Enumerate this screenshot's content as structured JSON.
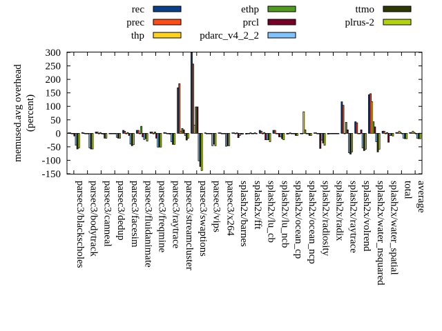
{
  "chart_data": {
    "type": "bar",
    "title": "",
    "xlabel": "",
    "ylabel": "memused.avg overhead",
    "ylabel2": "(percent)",
    "ylim": [
      -150,
      300
    ],
    "yticks": [
      -150,
      -100,
      -50,
      0,
      50,
      100,
      150,
      200,
      250,
      300
    ],
    "grid": false,
    "legend_placement": "top",
    "categories": [
      "parsec3/blackscholes",
      "parsec3/bodytrack",
      "parsec3/canneal",
      "parsec3/dedup",
      "parsec3/facesim",
      "parsec3/fluidanimate",
      "parsec3/freqmine",
      "parsec3/raytrace",
      "parsec3/streamcluster",
      "parsec3/swaptions",
      "parsec3/vips",
      "parsec3/x264",
      "splash2x/barnes",
      "splash2x/fft",
      "splash2x/lu_cb",
      "splash2x/lu_ncb",
      "splash2x/ocean_cp",
      "splash2x/ocean_ncp",
      "splash2x/radiosity",
      "splash2x/radix",
      "splash2x/raytrace",
      "splash2x/volrend",
      "splash2x/water_nsquared",
      "splash2x/water_spatial",
      "total",
      "average"
    ],
    "series": [
      {
        "name": "rec",
        "color": "#08418a",
        "values": [
          2,
          3,
          5,
          0,
          11,
          11,
          5,
          3,
          169,
          300,
          2,
          2,
          2,
          -3,
          11,
          11,
          -3,
          0,
          2,
          -3,
          117,
          43,
          143,
          8,
          3,
          3
        ]
      },
      {
        "name": "prec",
        "color": "#ff4b14",
        "values": [
          2,
          1,
          5,
          0,
          8,
          11,
          5,
          2,
          184,
          257,
          0,
          2,
          2,
          0,
          8,
          11,
          0,
          0,
          2,
          0,
          104,
          39,
          147,
          8,
          3,
          3
        ]
      },
      {
        "name": "thp",
        "color": "#ffd21e",
        "values": [
          0,
          0,
          0,
          0,
          0,
          0,
          0,
          0,
          8,
          30,
          0,
          0,
          0,
          0,
          0,
          0,
          2,
          80,
          0,
          0,
          0,
          0,
          117,
          0,
          8,
          8
        ]
      },
      {
        "name": "ethp",
        "color": "#4f9c1e",
        "values": [
          0,
          0,
          3,
          0,
          3,
          26,
          5,
          0,
          18,
          98,
          0,
          0,
          2,
          2,
          3,
          0,
          0,
          13,
          0,
          0,
          41,
          0,
          43,
          3,
          3,
          3
        ]
      },
      {
        "name": "prcl",
        "color": "#780028",
        "values": [
          -10,
          0,
          0,
          0,
          -8,
          -13,
          -18,
          -3,
          13,
          98,
          0,
          0,
          -16,
          0,
          -24,
          -13,
          0,
          0,
          -56,
          0,
          13,
          13,
          24,
          -33,
          -2,
          -2
        ]
      },
      {
        "name": "pdarc_v4_2_2",
        "color": "#7fc4ff",
        "values": [
          -44,
          -54,
          -3,
          -15,
          -40,
          -23,
          -51,
          -31,
          -8,
          -102,
          -46,
          -48,
          -8,
          0,
          -24,
          -13,
          0,
          0,
          -25,
          0,
          -72,
          -54,
          -31,
          -8,
          -18,
          -18
        ]
      },
      {
        "name": "ttmo",
        "color": "#2e3a04",
        "values": [
          -58,
          -58,
          -18,
          -18,
          -46,
          -20,
          -51,
          -41,
          -25,
          -123,
          -40,
          -46,
          -3,
          2,
          -24,
          -20,
          -8,
          -8,
          -36,
          0,
          -77,
          -64,
          -69,
          -8,
          -20,
          -20
        ]
      },
      {
        "name": "plrus-2",
        "color": "#b4d20a",
        "values": [
          -54,
          -58,
          -18,
          -18,
          -42,
          -29,
          -51,
          -41,
          -18,
          -138,
          -46,
          -46,
          -3,
          0,
          -31,
          -24,
          -8,
          -8,
          -44,
          0,
          -69,
          -59,
          -59,
          -10,
          -20,
          -20
        ]
      }
    ]
  }
}
